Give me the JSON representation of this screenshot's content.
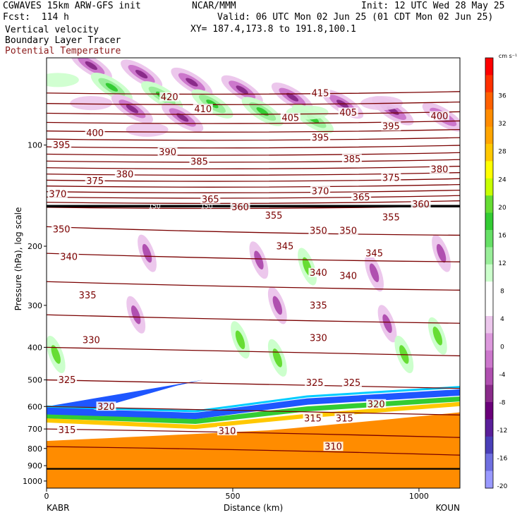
{
  "header": {
    "model": "CGWAVES 15km ARW-GFS init",
    "fcst": "Fcst:  114 h",
    "org": "NCAR/MMM",
    "init": "Init: 12 UTC Wed 28 May 25",
    "valid": "Valid: 06 UTC Mon 02 Jun 25 (01 CDT Mon 02 Jun 25)",
    "xy": "XY= 187.4,173.8 to 191.8,100.1",
    "field1": "Vertical velocity",
    "field2": "Boundary Layer Tracer",
    "field3": "Potential Temperature"
  },
  "colorbar": {
    "unit": "cm s⁻¹",
    "labels": [
      "36",
      "32",
      "28",
      "24",
      "20",
      "16",
      "12",
      "8",
      "4",
      "0",
      "-4",
      "-8",
      "-12",
      "-16",
      "-20"
    ],
    "colors": [
      "#ff0000",
      "#ff3000",
      "#ff6000",
      "#ff8c00",
      "#ffa500",
      "#ffc800",
      "#ffff00",
      "#c8ff00",
      "#66dd33",
      "#33cc33",
      "#66e066",
      "#99ee99",
      "#ccffcc",
      "#ffffff",
      "#ffffff",
      "#ecc7ec",
      "#dd99dd",
      "#cc77cc",
      "#b050b0",
      "#8a2b8a",
      "#6a007a",
      "#5a1f9a",
      "#4a3fb8",
      "#6f6fe0",
      "#9999ff"
    ]
  },
  "chart_data": {
    "type": "cross-section",
    "xlabel": "Distance (km)",
    "ylabel": "Pressure (hPa), log scale",
    "x_ticks": [
      "0",
      "500",
      "1000"
    ],
    "x_end_labels": [
      "KABR",
      "KOUN"
    ],
    "xlim": [
      0,
      1110
    ],
    "y_ticks": [
      "100",
      "200",
      "300",
      "400",
      "500",
      "600",
      "700",
      "800",
      "900",
      "1000"
    ],
    "ylim": [
      55,
      1050
    ],
    "y_scale": "log",
    "tropopause_labels": [
      "150",
      "150"
    ],
    "theta_labels": [
      {
        "v": "420",
        "x": 330,
        "p": 72
      },
      {
        "v": "410",
        "x": 420,
        "p": 78
      },
      {
        "v": "415",
        "x": 735,
        "p": 70
      },
      {
        "v": "405",
        "x": 810,
        "p": 80
      },
      {
        "v": "405",
        "x": 655,
        "p": 83
      },
      {
        "v": "400",
        "x": 130,
        "p": 92
      },
      {
        "v": "400",
        "x": 1055,
        "p": 82
      },
      {
        "v": "395",
        "x": 40,
        "p": 100
      },
      {
        "v": "395",
        "x": 735,
        "p": 95
      },
      {
        "v": "395",
        "x": 925,
        "p": 88
      },
      {
        "v": "390",
        "x": 325,
        "p": 105
      },
      {
        "v": "385",
        "x": 410,
        "p": 112
      },
      {
        "v": "385",
        "x": 820,
        "p": 110
      },
      {
        "v": "380",
        "x": 210,
        "p": 122
      },
      {
        "v": "380",
        "x": 1055,
        "p": 118
      },
      {
        "v": "375",
        "x": 130,
        "p": 128
      },
      {
        "v": "375",
        "x": 925,
        "p": 125
      },
      {
        "v": "370",
        "x": 30,
        "p": 140
      },
      {
        "v": "370",
        "x": 735,
        "p": 137
      },
      {
        "v": "365",
        "x": 440,
        "p": 145
      },
      {
        "v": "365",
        "x": 845,
        "p": 143
      },
      {
        "v": "360",
        "x": 520,
        "p": 153
      },
      {
        "v": "360",
        "x": 1005,
        "p": 150
      },
      {
        "v": "355",
        "x": 610,
        "p": 162
      },
      {
        "v": "355",
        "x": 925,
        "p": 164
      },
      {
        "v": "350",
        "x": 40,
        "p": 178
      },
      {
        "v": "350",
        "x": 730,
        "p": 180
      },
      {
        "v": "350",
        "x": 810,
        "p": 180
      },
      {
        "v": "345",
        "x": 640,
        "p": 200
      },
      {
        "v": "345",
        "x": 880,
        "p": 210
      },
      {
        "v": "340",
        "x": 60,
        "p": 215
      },
      {
        "v": "340",
        "x": 730,
        "p": 240
      },
      {
        "v": "340",
        "x": 810,
        "p": 245
      },
      {
        "v": "335",
        "x": 110,
        "p": 280
      },
      {
        "v": "335",
        "x": 730,
        "p": 300
      },
      {
        "v": "330",
        "x": 120,
        "p": 380
      },
      {
        "v": "330",
        "x": 730,
        "p": 375
      },
      {
        "v": "325",
        "x": 55,
        "p": 500
      },
      {
        "v": "325",
        "x": 720,
        "p": 510
      },
      {
        "v": "325",
        "x": 820,
        "p": 510
      },
      {
        "v": "320",
        "x": 160,
        "p": 600
      },
      {
        "v": "320",
        "x": 885,
        "p": 590
      },
      {
        "v": "315",
        "x": 55,
        "p": 705
      },
      {
        "v": "315",
        "x": 715,
        "p": 650
      },
      {
        "v": "315",
        "x": 800,
        "p": 650
      },
      {
        "v": "310",
        "x": 485,
        "p": 710
      },
      {
        "v": "310",
        "x": 770,
        "p": 790
      }
    ]
  }
}
